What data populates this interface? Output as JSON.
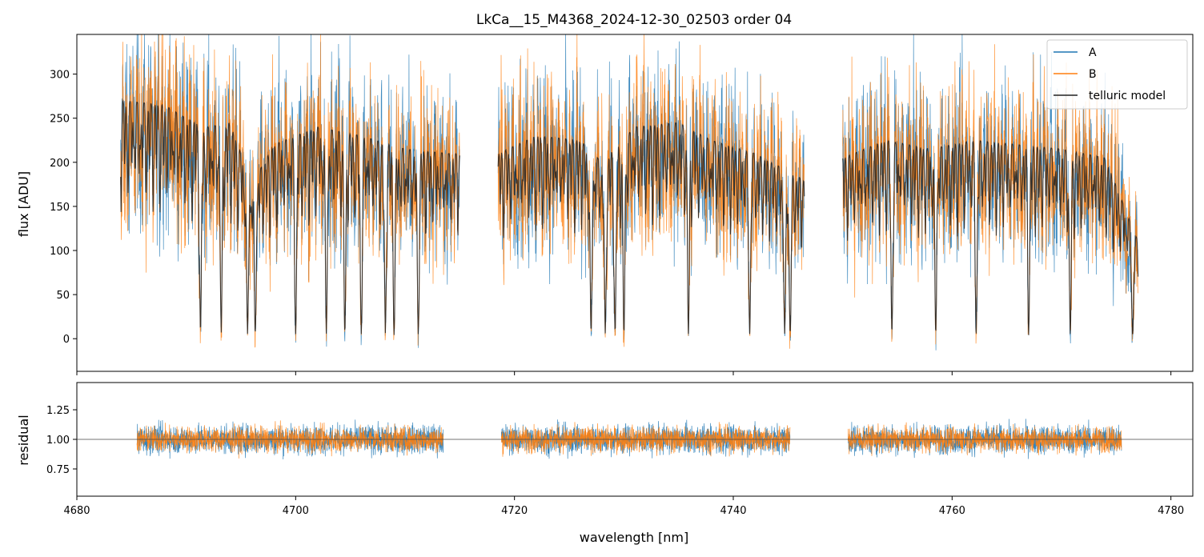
{
  "chart_data": [
    {
      "type": "line",
      "panel": "flux",
      "title": "LkCa__15_M4368_2024-12-30_02503  order 04",
      "xlabel": "",
      "ylabel": "flux [ADU]",
      "xlim": [
        4680,
        4782
      ],
      "ylim": [
        -37,
        345
      ],
      "xticks": [
        4680,
        4700,
        4720,
        4740,
        4760,
        4780
      ],
      "yticks": [
        0,
        50,
        100,
        150,
        200,
        250,
        300
      ],
      "ytick_labels": [
        "0",
        "50",
        "100",
        "150",
        "200",
        "250",
        "300"
      ],
      "grid": false,
      "legend": {
        "placement": "top-right",
        "entries": [
          "A",
          "B",
          "telluric model"
        ]
      },
      "segments": [
        [
          4684.0,
          4715.0
        ],
        [
          4718.5,
          4746.5
        ],
        [
          4750.0,
          4777.0
        ]
      ],
      "continuum": [
        [
          4684,
          270
        ],
        [
          4688,
          265
        ],
        [
          4690,
          250
        ],
        [
          4692,
          240
        ],
        [
          4694,
          245
        ],
        [
          4696,
          175
        ],
        [
          4698,
          220
        ],
        [
          4702,
          240
        ],
        [
          4706,
          230
        ],
        [
          4710,
          215
        ],
        [
          4714,
          210
        ],
        [
          4718.5,
          210
        ],
        [
          4722,
          230
        ],
        [
          4726,
          225
        ],
        [
          4728,
          200
        ],
        [
          4731,
          240
        ],
        [
          4735,
          245
        ],
        [
          4738,
          225
        ],
        [
          4742,
          210
        ],
        [
          4746.5,
          180
        ],
        [
          4750,
          205
        ],
        [
          4754,
          225
        ],
        [
          4758,
          215
        ],
        [
          4762,
          225
        ],
        [
          4766,
          220
        ],
        [
          4770,
          215
        ],
        [
          4774,
          205
        ],
        [
          4777,
          110
        ]
      ],
      "absorption_lines": [
        4691.3,
        4693.2,
        4695.6,
        4696.3,
        4700.0,
        4702.8,
        4704.5,
        4706.0,
        4708.2,
        4709.0,
        4711.2,
        4727.0,
        4728.3,
        4729.2,
        4730.0,
        4735.9,
        4741.5,
        4744.7,
        4745.2,
        4754.5,
        4758.5,
        4762.2,
        4767.0,
        4770.8,
        4776.5
      ],
      "series": [
        {
          "name": "A",
          "color": "#1f77b4",
          "noise": 55
        },
        {
          "name": "B",
          "color": "#ff7f0e",
          "noise": 55
        },
        {
          "name": "telluric model",
          "color": "#222222",
          "noise": 0
        }
      ]
    },
    {
      "type": "line",
      "panel": "residual",
      "xlabel": "wavelength [nm]",
      "ylabel": "residual",
      "xlim": [
        4680,
        4782
      ],
      "ylim": [
        0.52,
        1.48
      ],
      "xticks": [
        4680,
        4700,
        4720,
        4740,
        4760,
        4780
      ],
      "xtick_labels": [
        "4680",
        "4700",
        "4720",
        "4740",
        "4760",
        "4780"
      ],
      "yticks": [
        0.75,
        1.0,
        1.25
      ],
      "ytick_labels": [
        "0.75",
        "1.00",
        "1.25"
      ],
      "reference_line": 1.0,
      "segments": [
        [
          4685.5,
          4713.5
        ],
        [
          4718.8,
          4745.2
        ],
        [
          4750.5,
          4775.5
        ]
      ],
      "series": [
        {
          "name": "A",
          "color": "#1f77b4",
          "noise": 0.16
        },
        {
          "name": "B",
          "color": "#ff7f0e",
          "noise": 0.14
        }
      ]
    }
  ]
}
